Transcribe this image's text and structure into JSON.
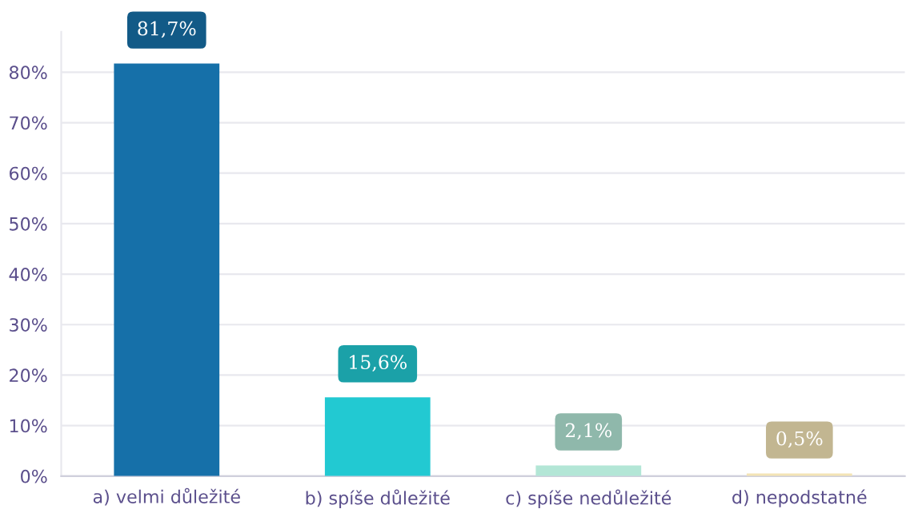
{
  "chart_data": {
    "type": "bar",
    "categories": [
      "a) velmi důležité",
      "b) spíše důležité",
      "c) spíše nedůležité",
      "d) nepodstatné"
    ],
    "values": [
      81.7,
      15.6,
      2.1,
      0.5
    ],
    "colors": [
      "#1670a9",
      "#22c9d2",
      "#b3e6d6",
      "#f3e4b5"
    ],
    "value_labels": [
      "81,7%",
      "15,6%",
      "2,1%",
      "0,5%"
    ],
    "ylim": [
      0,
      88
    ],
    "yticks": [
      {
        "value": 0,
        "label": "0%"
      },
      {
        "value": 10,
        "label": "10%"
      },
      {
        "value": 20,
        "label": "20%"
      },
      {
        "value": 30,
        "label": "30%"
      },
      {
        "value": 40,
        "label": "40%"
      },
      {
        "value": 50,
        "label": "50%"
      },
      {
        "value": 60,
        "label": "60%"
      },
      {
        "value": 70,
        "label": "70%"
      },
      {
        "value": 80,
        "label": "80%"
      }
    ],
    "grid": "y",
    "legend": false
  }
}
